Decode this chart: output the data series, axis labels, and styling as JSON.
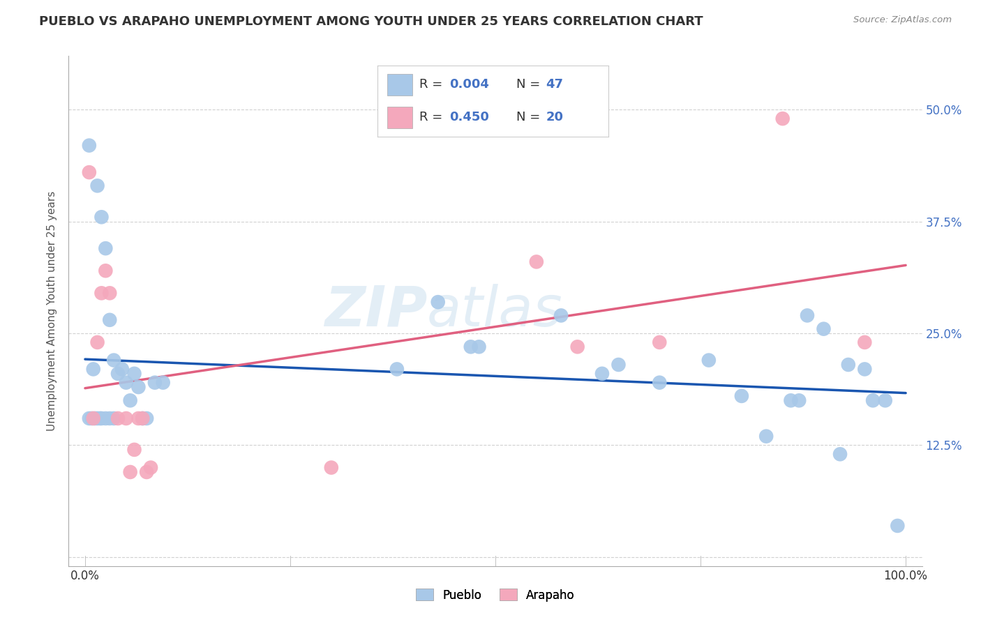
{
  "title": "PUEBLO VS ARAPAHO UNEMPLOYMENT AMONG YOUTH UNDER 25 YEARS CORRELATION CHART",
  "source": "Source: ZipAtlas.com",
  "ylabel": "Unemployment Among Youth under 25 years",
  "watermark_zip": "ZIP",
  "watermark_atlas": "atlas",
  "legend_pueblo": "Pueblo",
  "legend_arapaho": "Arapaho",
  "pueblo_color": "#a8c8e8",
  "arapaho_color": "#f4a8bc",
  "pueblo_line_color": "#1a56b0",
  "arapaho_line_color": "#e06080",
  "background_color": "#ffffff",
  "grid_color": "#cccccc",
  "xlim": [
    -0.02,
    1.02
  ],
  "ylim": [
    -0.01,
    0.56
  ],
  "xticks": [
    0.0,
    0.25,
    0.5,
    0.75,
    1.0
  ],
  "xticklabels": [
    "0.0%",
    "",
    "",
    "",
    "100.0%"
  ],
  "ytick_positions": [
    0.0,
    0.125,
    0.25,
    0.375,
    0.5
  ],
  "ytick_labels_right": [
    "",
    "12.5%",
    "25.0%",
    "37.5%",
    "50.0%"
  ],
  "title_fontsize": 13,
  "label_fontsize": 11,
  "tick_fontsize": 12,
  "legend_r_color": "#4472c4",
  "legend_text_color": "#333333",
  "pueblo_x": [
    0.005,
    0.015,
    0.02,
    0.025,
    0.03,
    0.035,
    0.04,
    0.045,
    0.05,
    0.055,
    0.06,
    0.065,
    0.07,
    0.075,
    0.005,
    0.008,
    0.01,
    0.012,
    0.015,
    0.018,
    0.02,
    0.025,
    0.03,
    0.035,
    0.085,
    0.095,
    0.38,
    0.43,
    0.47,
    0.48,
    0.58,
    0.63,
    0.65,
    0.7,
    0.76,
    0.8,
    0.83,
    0.86,
    0.87,
    0.88,
    0.9,
    0.92,
    0.93,
    0.95,
    0.96,
    0.975,
    0.99
  ],
  "pueblo_y": [
    0.46,
    0.415,
    0.38,
    0.345,
    0.265,
    0.22,
    0.205,
    0.21,
    0.195,
    0.175,
    0.205,
    0.19,
    0.155,
    0.155,
    0.155,
    0.155,
    0.21,
    0.155,
    0.155,
    0.155,
    0.155,
    0.155,
    0.155,
    0.155,
    0.195,
    0.195,
    0.21,
    0.285,
    0.235,
    0.235,
    0.27,
    0.205,
    0.215,
    0.195,
    0.22,
    0.18,
    0.135,
    0.175,
    0.175,
    0.27,
    0.255,
    0.115,
    0.215,
    0.21,
    0.175,
    0.175,
    0.035
  ],
  "arapaho_x": [
    0.005,
    0.01,
    0.015,
    0.02,
    0.025,
    0.03,
    0.04,
    0.05,
    0.055,
    0.06,
    0.065,
    0.07,
    0.075,
    0.08,
    0.3,
    0.55,
    0.6,
    0.7,
    0.85,
    0.95
  ],
  "arapaho_y": [
    0.43,
    0.155,
    0.24,
    0.295,
    0.32,
    0.295,
    0.155,
    0.155,
    0.095,
    0.12,
    0.155,
    0.155,
    0.095,
    0.1,
    0.1,
    0.33,
    0.235,
    0.24,
    0.49,
    0.24
  ]
}
